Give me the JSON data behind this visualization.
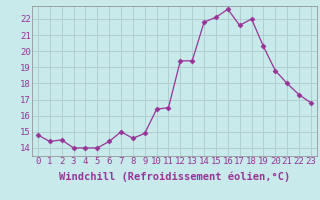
{
  "x": [
    0,
    1,
    2,
    3,
    4,
    5,
    6,
    7,
    8,
    9,
    10,
    11,
    12,
    13,
    14,
    15,
    16,
    17,
    18,
    19,
    20,
    21,
    22,
    23
  ],
  "y": [
    14.8,
    14.4,
    14.5,
    14.0,
    14.0,
    14.0,
    14.4,
    15.0,
    14.6,
    14.9,
    16.4,
    16.5,
    19.4,
    19.4,
    21.8,
    22.1,
    22.6,
    21.6,
    22.0,
    20.3,
    18.8,
    18.0,
    17.3,
    16.8
  ],
  "line_color": "#993399",
  "marker": "D",
  "marker_size": 2.5,
  "bg_color": "#c8eaea",
  "grid_color": "#b0d0d0",
  "xlabel": "Windchill (Refroidissement éolien,°C)",
  "xlabel_fontsize": 7.5,
  "tick_fontsize": 6.5,
  "ylim": [
    13.5,
    22.8
  ],
  "xlim": [
    -0.5,
    23.5
  ],
  "yticks": [
    14,
    15,
    16,
    17,
    18,
    19,
    20,
    21,
    22
  ],
  "xticks": [
    0,
    1,
    2,
    3,
    4,
    5,
    6,
    7,
    8,
    9,
    10,
    11,
    12,
    13,
    14,
    15,
    16,
    17,
    18,
    19,
    20,
    21,
    22,
    23
  ]
}
